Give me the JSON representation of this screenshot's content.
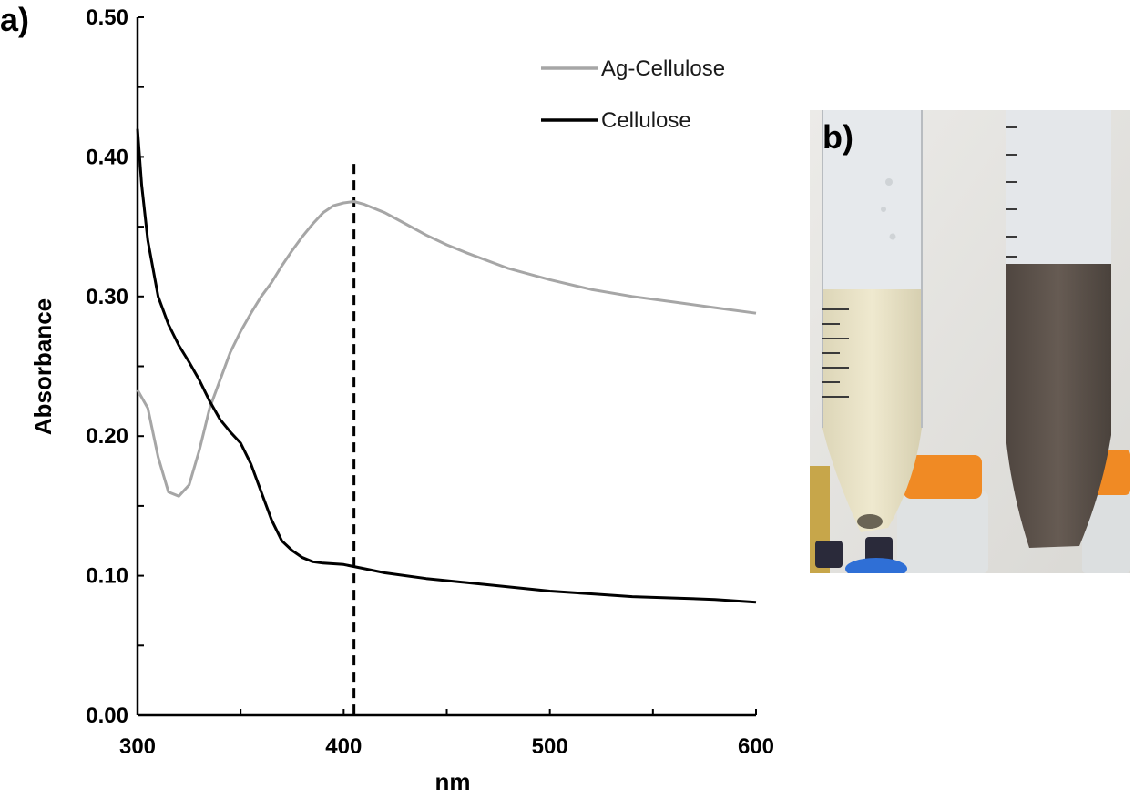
{
  "panels": {
    "a_label": "a)",
    "b_label": "b)"
  },
  "chart_data": {
    "type": "line",
    "title": "",
    "xlabel": "nm",
    "ylabel": "Absorbance",
    "xlim": [
      300,
      600
    ],
    "ylim": [
      0,
      0.5
    ],
    "x_ticks": [
      300,
      400,
      500,
      600
    ],
    "x_tick_labels": [
      "300",
      "400",
      "500",
      "600"
    ],
    "y_ticks": [
      0,
      0.1,
      0.2,
      0.3,
      0.4,
      0.5
    ],
    "y_tick_labels": [
      "0.00",
      "0.10",
      "0.20",
      "0.30",
      "0.40",
      "0.50"
    ],
    "grid": false,
    "legend_position": "top-right",
    "reference_line": {
      "x": 405,
      "style": "dashed",
      "ymax": 0.395
    },
    "series": [
      {
        "name": "Ag-Cellulose",
        "color": "#a6a6a6",
        "x": [
          300,
          305,
          310,
          315,
          320,
          325,
          330,
          335,
          340,
          345,
          350,
          355,
          360,
          365,
          370,
          375,
          380,
          385,
          390,
          395,
          400,
          405,
          410,
          420,
          430,
          440,
          450,
          460,
          480,
          500,
          520,
          540,
          560,
          580,
          600
        ],
        "y": [
          0.233,
          0.22,
          0.185,
          0.16,
          0.157,
          0.165,
          0.19,
          0.22,
          0.24,
          0.26,
          0.275,
          0.288,
          0.3,
          0.31,
          0.322,
          0.333,
          0.343,
          0.352,
          0.36,
          0.365,
          0.367,
          0.368,
          0.366,
          0.36,
          0.352,
          0.344,
          0.337,
          0.331,
          0.32,
          0.312,
          0.305,
          0.3,
          0.296,
          0.292,
          0.288
        ]
      },
      {
        "name": "Cellulose",
        "color": "#000000",
        "x": [
          300,
          302,
          305,
          310,
          315,
          320,
          325,
          330,
          335,
          340,
          345,
          350,
          355,
          360,
          365,
          370,
          375,
          380,
          385,
          390,
          400,
          410,
          420,
          440,
          460,
          480,
          500,
          520,
          540,
          560,
          580,
          600
        ],
        "y": [
          0.42,
          0.38,
          0.34,
          0.3,
          0.28,
          0.265,
          0.253,
          0.24,
          0.225,
          0.212,
          0.203,
          0.195,
          0.18,
          0.16,
          0.14,
          0.125,
          0.118,
          0.113,
          0.11,
          0.109,
          0.108,
          0.105,
          0.102,
          0.098,
          0.095,
          0.092,
          0.089,
          0.087,
          0.085,
          0.084,
          0.083,
          0.081
        ]
      }
    ]
  }
}
